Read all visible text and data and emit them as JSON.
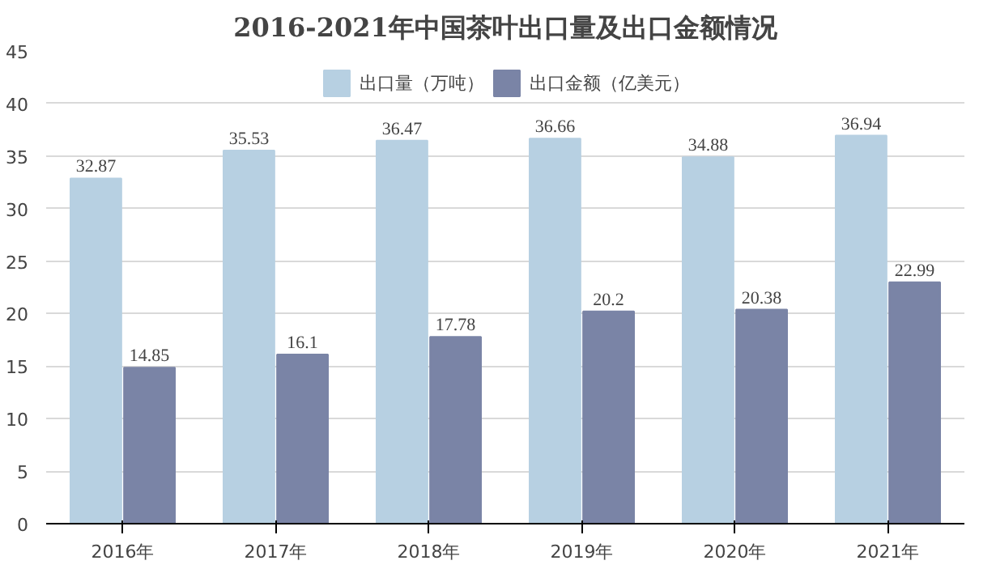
{
  "chart_data": {
    "type": "bar",
    "title": "2016-2021年中国茶叶出口量及出口金额情况",
    "categories": [
      "2016年",
      "2017年",
      "2018年",
      "2019年",
      "2020年",
      "2021年"
    ],
    "series": [
      {
        "name": "出口量（万吨）",
        "color": "#b7d0e2",
        "values": [
          32.87,
          35.53,
          36.47,
          36.66,
          34.88,
          36.94
        ]
      },
      {
        "name": "出口金额（亿美元）",
        "color": "#7a84a6",
        "values": [
          14.85,
          16.1,
          17.78,
          20.2,
          20.38,
          22.99
        ]
      }
    ],
    "ylim": [
      0,
      45
    ],
    "yticks": [
      0,
      5,
      10,
      15,
      20,
      25,
      30,
      35,
      40,
      45
    ],
    "grid": "y",
    "legend": "top",
    "data_labels": true
  }
}
